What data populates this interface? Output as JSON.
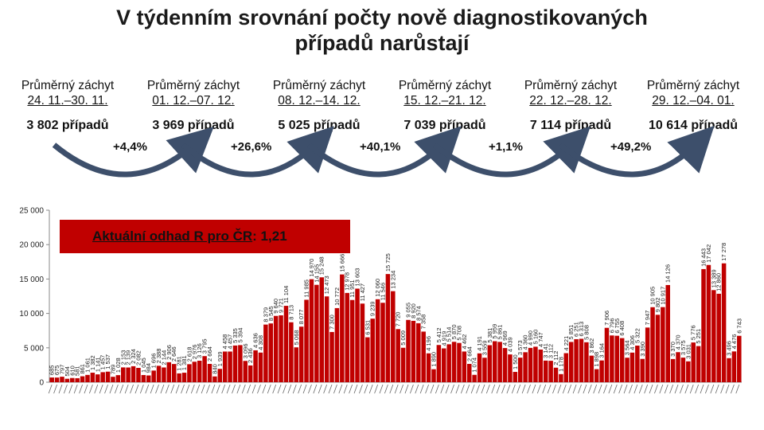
{
  "slide": {
    "title_line1": "V týdenním srovnání počty nově diagnostikovaných",
    "title_line2": "případů narůstají"
  },
  "weeks": [
    {
      "label": "Průměrný záchyt",
      "range": "24. 11.–30. 11.",
      "cases": "3 802 případů"
    },
    {
      "label": "Průměrný záchyt",
      "range": "01. 12.–07. 12.",
      "cases": "3 969 případů"
    },
    {
      "label": "Průměrný záchyt",
      "range": "08. 12.–14. 12.",
      "cases": "5 025 případů"
    },
    {
      "label": "Průměrný záchyt",
      "range": "15. 12.–21. 12.",
      "cases": "7 039 případů"
    },
    {
      "label": "Průměrný záchyt",
      "range": "22. 12.–28. 12.",
      "cases": "7 114 případů"
    },
    {
      "label": "Průměrný záchyt",
      "range": "29. 12.–04. 01.",
      "cases": "10 614 případů"
    }
  ],
  "changes": [
    "+4,4%",
    "+26,6%",
    "+40,1%",
    "+1,1%",
    "+49,2%"
  ],
  "r_estimate": {
    "label": "Aktuální odhad R pro ČR",
    "value": ": 1,21"
  },
  "colors": {
    "bar": "#c00000",
    "arrow": "#3d4f6b",
    "box": "#c00000"
  },
  "chart_data": {
    "type": "bar",
    "ylim": [
      0,
      25000
    ],
    "yticks": [
      "0",
      "5 000",
      "10 000",
      "15 000",
      "20 000",
      "25 000"
    ],
    "values": [
      685,
      675,
      797,
      504,
      610,
      581,
      861,
      1061,
      1382,
      1141,
      1457,
      1537,
      789,
      1028,
      2153,
      2139,
      2324,
      2082,
      1045,
      984,
      1696,
      2388,
      2144,
      2906,
      2646,
      1281,
      1381,
      2618,
      2976,
      3126,
      3795,
      2664,
      840,
      1939,
      4458,
      4457,
      5335,
      5394,
      3096,
      2436,
      4636,
      4308,
      8379,
      8545,
      9640,
      9721,
      11104,
      8713,
      5068,
      8077,
      11985,
      14970,
      14155,
      15248,
      12473,
      7300,
      10772,
      15666,
      12978,
      11951,
      13603,
      11427,
      6531,
      9239,
      12060,
      11546,
      15725,
      13234,
      7720,
      5009,
      9055,
      8920,
      8574,
      7358,
      4196,
      1890,
      5412,
      4919,
      5514,
      5870,
      5708,
      4462,
      2664,
      1074,
      4191,
      3559,
      5381,
      5959,
      5861,
      4969,
      4039,
      1500,
      3573,
      4360,
      4990,
      5160,
      4747,
      3141,
      3112,
      2112,
      1178,
      4221,
      5851,
      6251,
      6313,
      5808,
      3862,
      1898,
      3164,
      7906,
      6796,
      6755,
      6408,
      3564,
      4306,
      5322,
      3390,
      7947,
      10905,
      9802,
      10917,
      14126,
      3370,
      4370,
      3575,
      3031,
      5776,
      5251,
      16443,
      17042,
      13389,
      12860,
      17278,
      3496,
      4476,
      6743
    ],
    "labels": [
      "685",
      "675",
      "797",
      "504",
      "610",
      "581",
      "861",
      "1 061",
      "1 382",
      "1 141",
      "1 457",
      "1 537",
      "789",
      "1 028",
      "2 153",
      "2 139",
      "2 324",
      "2 082",
      "1 045",
      "984",
      "1 696",
      "2 388",
      "2 144",
      "2 906",
      "2 646",
      "1 281",
      "1 381",
      "2 618",
      "2 976",
      "3 126",
      "3 795",
      "2 664",
      "840",
      "1 939",
      "4 458",
      "4 457",
      "5 335",
      "5 394",
      "3 096",
      "2 436",
      "4 636",
      "4 308",
      "8 379",
      "8 545",
      "9 640",
      "9 721",
      "11 104",
      "8 713",
      "5 068",
      "8 077",
      "11 985",
      "14 970",
      "14 155",
      "15 248",
      "12 473",
      "7 300",
      "10 772",
      "15 666",
      "12 978",
      "11 951",
      "13 603",
      "11 427",
      "6 531",
      "9 239",
      "12 060",
      "11 546",
      "15 725",
      "13 234",
      "7 720",
      "5 009",
      "9 055",
      "8 920",
      "8 574",
      "7 358",
      "4 196",
      "1 890",
      "5 412",
      "4 919",
      "5 514",
      "5 870",
      "5 708",
      "4 462",
      "2 664",
      "1 074",
      "4 191",
      "3 559",
      "5 381",
      "5 959",
      "5 861",
      "4 969",
      "4 039",
      "1 500",
      "3 573",
      "4 360",
      "4 990",
      "5 160",
      "4 747",
      "3 141",
      "3 112",
      "2 112",
      "1 178",
      "4 221",
      "5 851",
      "6 251",
      "6 313",
      "5 808",
      "3 862",
      "1 898",
      "3 164",
      "7 906",
      "6 796",
      "6 755",
      "6 408",
      "3 564",
      "4 306",
      "5 322",
      "3 390",
      "7 947",
      "10 905",
      "9 802",
      "10 917",
      "14 126",
      "3 370",
      "4 370",
      "3 575",
      "3 031",
      "5 776",
      "5 251",
      "16 443",
      "17 042",
      "13 389",
      "12 860",
      "17 278",
      "3 496",
      "4 476",
      "6 743"
    ]
  }
}
